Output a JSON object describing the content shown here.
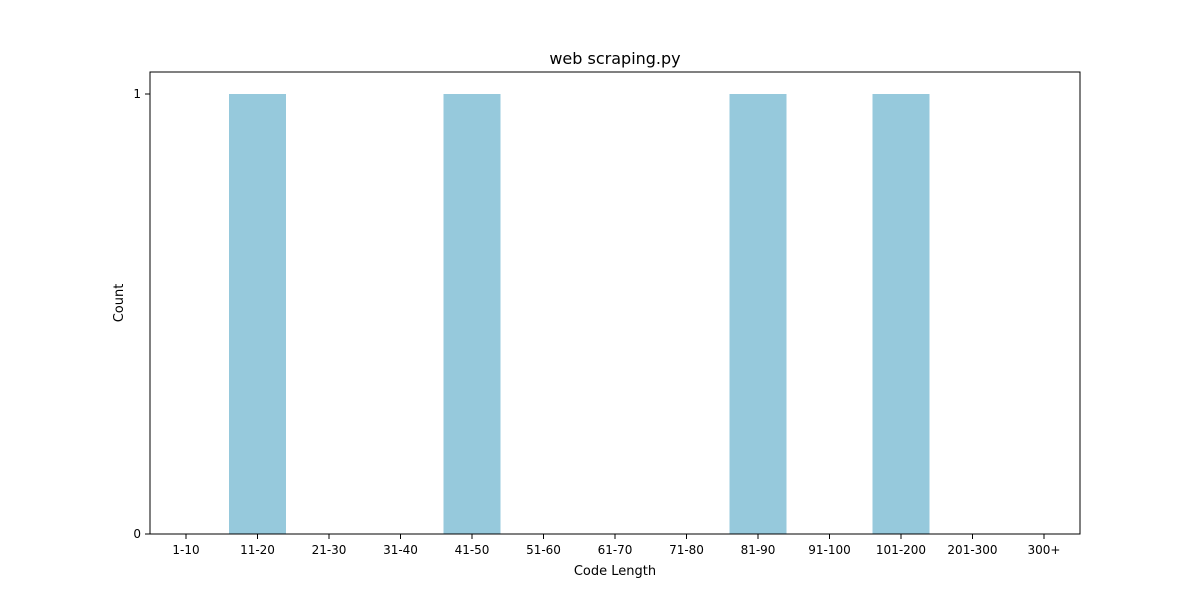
{
  "chart_data": {
    "type": "bar",
    "title": "web scraping.py",
    "xlabel": "Code Length",
    "ylabel": "Count",
    "categories": [
      "1-10",
      "11-20",
      "21-30",
      "31-40",
      "41-50",
      "51-60",
      "61-70",
      "71-80",
      "81-90",
      "91-100",
      "101-200",
      "201-300",
      "300+"
    ],
    "values": [
      0,
      1,
      0,
      0,
      1,
      0,
      0,
      0,
      1,
      0,
      1,
      0,
      0
    ],
    "yticks": [
      0,
      1
    ],
    "ylim": [
      0,
      1.05
    ],
    "grid": false,
    "legend": "none",
    "bar_color": "#96c9dc"
  }
}
